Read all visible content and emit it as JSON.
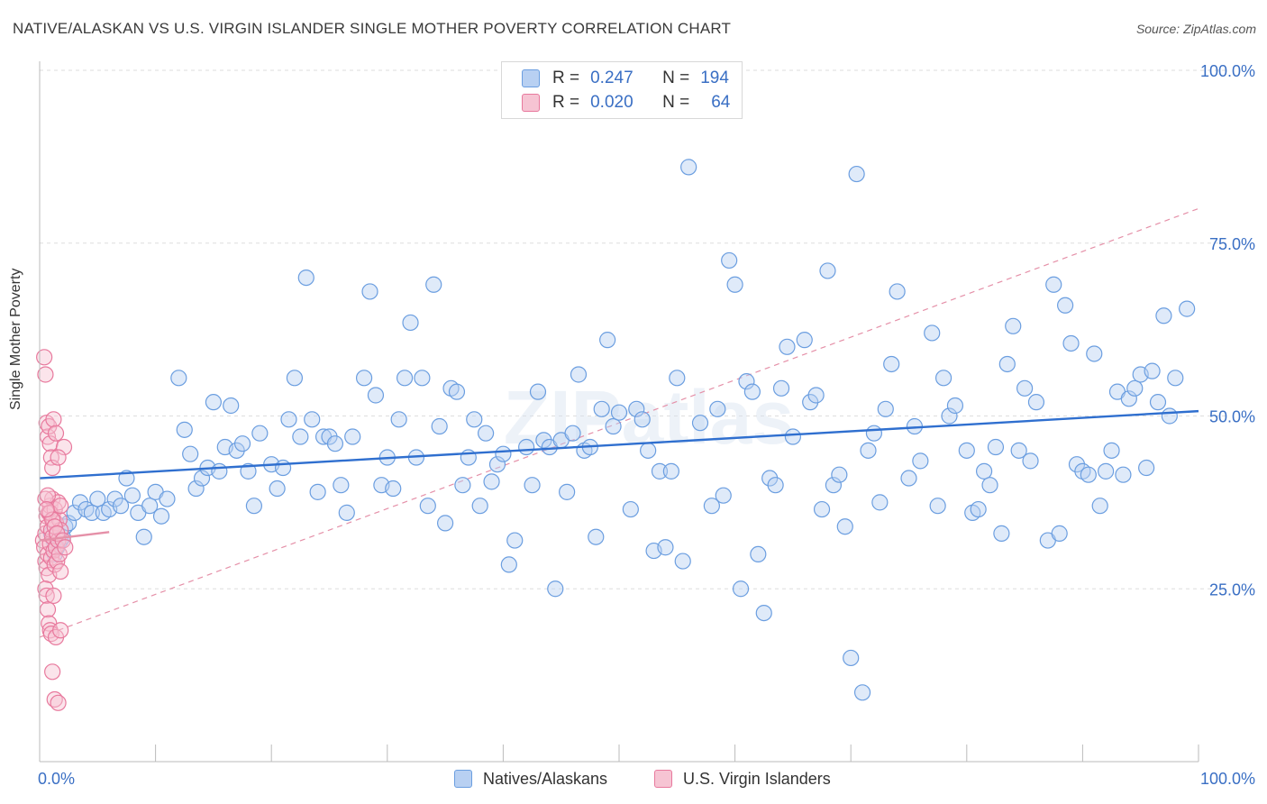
{
  "title": "NATIVE/ALASKAN VS U.S. VIRGIN ISLANDER SINGLE MOTHER POVERTY CORRELATION CHART",
  "source": "Source: ZipAtlas.com",
  "watermark": "ZIPatlas",
  "legend": {
    "rows": [
      {
        "r_label": "R =",
        "r_value": "0.247",
        "n_label": "N =",
        "n_value": "194"
      },
      {
        "r_label": "R =",
        "r_value": "0.020",
        "n_label": "N =",
        "n_value": "64"
      }
    ]
  },
  "colors": {
    "blue_fill": "#b8d0f2",
    "blue_stroke": "#6b9ee0",
    "blue_line": "#2f6fcf",
    "pink_fill": "#f6c4d3",
    "pink_stroke": "#e8799d",
    "pink_line": "#e590a8",
    "axis_label": "#3a6fc4",
    "grid": "#dddddd"
  },
  "chart_data": {
    "type": "scatter",
    "ylabel": "Single Mother Poverty",
    "xlim": [
      0,
      100
    ],
    "ylim": [
      0,
      100
    ],
    "x_tick_labels": [
      "0.0%",
      "100.0%"
    ],
    "y_tick_labels": [
      "25.0%",
      "50.0%",
      "75.0%",
      "100.0%"
    ],
    "y_ticks": [
      25,
      50,
      75,
      100
    ],
    "grid": true,
    "legend_position": "top-center",
    "series": [
      {
        "name": "Natives/Alaskans",
        "trend": {
          "x": [
            0,
            100
          ],
          "y": [
            41.0,
            50.7
          ]
        },
        "points": [
          [
            1,
            33
          ],
          [
            1.2,
            32
          ],
          [
            1.3,
            30
          ],
          [
            1.5,
            31
          ],
          [
            1.8,
            32
          ],
          [
            2,
            32.5
          ],
          [
            2.2,
            34
          ],
          [
            2.5,
            34.5
          ],
          [
            3,
            36
          ],
          [
            3.5,
            37.5
          ],
          [
            4,
            36.5
          ],
          [
            4.5,
            36
          ],
          [
            5,
            38
          ],
          [
            5.5,
            36
          ],
          [
            6,
            36.5
          ],
          [
            6.5,
            38
          ],
          [
            7,
            37
          ],
          [
            7.5,
            41
          ],
          [
            8,
            38.5
          ],
          [
            8.5,
            36
          ],
          [
            9,
            32.5
          ],
          [
            9.5,
            37
          ],
          [
            10,
            39
          ],
          [
            10.5,
            35.5
          ],
          [
            11,
            38
          ],
          [
            12,
            55.5
          ],
          [
            12.5,
            48
          ],
          [
            13,
            44.5
          ],
          [
            13.5,
            39.5
          ],
          [
            14,
            41
          ],
          [
            14.5,
            42.5
          ],
          [
            15,
            52
          ],
          [
            15.5,
            42
          ],
          [
            16,
            45.5
          ],
          [
            16.5,
            51.5
          ],
          [
            17,
            45
          ],
          [
            17.5,
            46
          ],
          [
            18,
            42
          ],
          [
            18.5,
            37
          ],
          [
            19,
            47.5
          ],
          [
            20,
            43
          ],
          [
            20.5,
            39.5
          ],
          [
            21,
            42.5
          ],
          [
            21.5,
            49.5
          ],
          [
            22,
            55.5
          ],
          [
            22.5,
            47
          ],
          [
            23,
            70
          ],
          [
            23.5,
            49.5
          ],
          [
            24,
            39
          ],
          [
            24.5,
            47
          ],
          [
            25,
            47
          ],
          [
            25.5,
            46
          ],
          [
            26,
            40
          ],
          [
            26.5,
            36
          ],
          [
            27,
            47
          ],
          [
            28,
            55.5
          ],
          [
            28.5,
            68
          ],
          [
            29,
            53
          ],
          [
            29.5,
            40
          ],
          [
            30,
            44
          ],
          [
            30.5,
            39.5
          ],
          [
            31,
            49.5
          ],
          [
            31.5,
            55.5
          ],
          [
            32,
            63.5
          ],
          [
            32.5,
            44
          ],
          [
            33,
            55.5
          ],
          [
            33.5,
            37
          ],
          [
            34,
            69
          ],
          [
            34.5,
            48.5
          ],
          [
            35,
            34.5
          ],
          [
            35.5,
            54
          ],
          [
            36,
            53.5
          ],
          [
            36.5,
            40
          ],
          [
            37,
            44
          ],
          [
            37.5,
            49.5
          ],
          [
            38,
            37
          ],
          [
            38.5,
            47.5
          ],
          [
            39,
            40.5
          ],
          [
            39.5,
            43
          ],
          [
            40,
            44.5
          ],
          [
            40.5,
            28.5
          ],
          [
            41,
            32
          ],
          [
            42,
            45.5
          ],
          [
            42.5,
            40
          ],
          [
            43,
            53.5
          ],
          [
            43.5,
            46.5
          ],
          [
            44,
            45.5
          ],
          [
            44.5,
            25
          ],
          [
            45,
            46.5
          ],
          [
            45.5,
            39
          ],
          [
            46,
            47.5
          ],
          [
            46.5,
            56
          ],
          [
            47,
            45
          ],
          [
            47.5,
            45.5
          ],
          [
            48,
            32.5
          ],
          [
            48.5,
            51
          ],
          [
            49,
            61
          ],
          [
            49.5,
            48.5
          ],
          [
            50,
            50.5
          ],
          [
            51,
            36.5
          ],
          [
            51.5,
            51
          ],
          [
            52,
            49.5
          ],
          [
            52.5,
            45
          ],
          [
            53,
            30.5
          ],
          [
            53.5,
            42
          ],
          [
            54,
            31
          ],
          [
            54.5,
            42
          ],
          [
            55,
            55.5
          ],
          [
            55.5,
            29
          ],
          [
            56,
            86
          ],
          [
            57,
            49
          ],
          [
            58,
            37
          ],
          [
            58.5,
            51
          ],
          [
            59,
            38.5
          ],
          [
            59.5,
            72.5
          ],
          [
            60,
            69
          ],
          [
            60.5,
            25
          ],
          [
            61,
            55
          ],
          [
            61.5,
            53.5
          ],
          [
            62,
            30
          ],
          [
            62.5,
            21.5
          ],
          [
            63,
            41
          ],
          [
            63.5,
            40
          ],
          [
            64,
            54
          ],
          [
            64.5,
            60
          ],
          [
            65,
            47
          ],
          [
            66,
            61
          ],
          [
            66.5,
            52
          ],
          [
            67,
            53
          ],
          [
            67.5,
            36.5
          ],
          [
            68,
            71
          ],
          [
            68.5,
            40
          ],
          [
            69,
            41.5
          ],
          [
            69.5,
            34
          ],
          [
            70,
            15
          ],
          [
            70.5,
            85
          ],
          [
            71,
            10
          ],
          [
            71.5,
            45
          ],
          [
            72,
            47.5
          ],
          [
            72.5,
            37.5
          ],
          [
            73,
            51
          ],
          [
            73.5,
            57.5
          ],
          [
            74,
            68
          ],
          [
            75,
            41
          ],
          [
            75.5,
            48.5
          ],
          [
            76,
            43.5
          ],
          [
            77,
            62
          ],
          [
            77.5,
            37
          ],
          [
            78,
            55.5
          ],
          [
            78.5,
            50
          ],
          [
            79,
            51.5
          ],
          [
            80,
            45
          ],
          [
            80.5,
            36
          ],
          [
            81,
            36.5
          ],
          [
            81.5,
            42
          ],
          [
            82,
            40
          ],
          [
            82.5,
            45.5
          ],
          [
            83,
            33
          ],
          [
            83.5,
            57.5
          ],
          [
            84,
            63
          ],
          [
            84.5,
            45
          ],
          [
            85,
            54
          ],
          [
            85.5,
            43.5
          ],
          [
            86,
            52
          ],
          [
            87,
            32
          ],
          [
            87.5,
            69
          ],
          [
            88,
            33
          ],
          [
            88.5,
            66
          ],
          [
            89,
            60.5
          ],
          [
            89.5,
            43
          ],
          [
            90,
            42
          ],
          [
            90.5,
            41.5
          ],
          [
            91,
            59
          ],
          [
            91.5,
            37
          ],
          [
            92,
            42
          ],
          [
            92.5,
            45
          ],
          [
            93,
            53.5
          ],
          [
            93.5,
            41.5
          ],
          [
            94,
            52.5
          ],
          [
            94.5,
            54
          ],
          [
            95,
            56
          ],
          [
            95.5,
            42.5
          ],
          [
            96,
            56.5
          ],
          [
            96.5,
            52
          ],
          [
            97,
            64.5
          ],
          [
            97.5,
            50
          ],
          [
            98,
            55.5
          ],
          [
            99,
            65.5
          ]
        ]
      },
      {
        "name": "U.S. Virgin Islanders",
        "trend": {
          "x": [
            0,
            6
          ],
          "y": [
            32.0,
            33.2
          ]
        },
        "trend_extended": {
          "x": [
            0,
            100
          ],
          "y": [
            18.0,
            80.0
          ]
        },
        "points": [
          [
            0.3,
            32
          ],
          [
            0.4,
            31
          ],
          [
            0.5,
            33
          ],
          [
            0.5,
            29
          ],
          [
            0.6,
            35.5
          ],
          [
            0.6,
            28
          ],
          [
            0.7,
            34
          ],
          [
            0.7,
            30
          ],
          [
            0.8,
            36
          ],
          [
            0.8,
            27
          ],
          [
            0.9,
            37
          ],
          [
            0.9,
            31.5
          ],
          [
            1,
            33.5
          ],
          [
            1,
            29.5
          ],
          [
            1.1,
            38
          ],
          [
            1.1,
            32.5
          ],
          [
            1.2,
            35
          ],
          [
            1.2,
            30.5
          ],
          [
            1.3,
            36.5
          ],
          [
            1.3,
            28.5
          ],
          [
            1.4,
            34.5
          ],
          [
            1.4,
            31
          ],
          [
            1.5,
            33
          ],
          [
            1.5,
            29
          ],
          [
            1.6,
            37.5
          ],
          [
            1.6,
            32
          ],
          [
            1.7,
            35
          ],
          [
            1.7,
            30
          ],
          [
            1.8,
            33.5
          ],
          [
            1.8,
            27.5
          ],
          [
            0.4,
            58.5
          ],
          [
            0.5,
            56
          ],
          [
            0.6,
            49
          ],
          [
            0.7,
            47
          ],
          [
            0.8,
            48.5
          ],
          [
            0.9,
            46
          ],
          [
            1,
            44
          ],
          [
            1.1,
            42.5
          ],
          [
            1.2,
            49.5
          ],
          [
            1.4,
            47.5
          ],
          [
            2.1,
            45.5
          ],
          [
            1.6,
            44
          ],
          [
            0.5,
            25
          ],
          [
            0.6,
            24
          ],
          [
            0.7,
            22
          ],
          [
            0.8,
            20
          ],
          [
            0.9,
            19
          ],
          [
            1,
            18.5
          ],
          [
            1.2,
            24
          ],
          [
            1.4,
            18
          ],
          [
            1.1,
            13
          ],
          [
            1.3,
            9
          ],
          [
            1.6,
            8.5
          ],
          [
            1.8,
            19
          ],
          [
            0.5,
            38
          ],
          [
            0.7,
            38.5
          ],
          [
            0.9,
            36
          ],
          [
            1.1,
            35
          ],
          [
            1.3,
            34
          ],
          [
            1.5,
            33
          ],
          [
            2,
            32
          ],
          [
            2.2,
            31
          ],
          [
            1.8,
            37
          ],
          [
            0.6,
            36.5
          ]
        ]
      }
    ]
  }
}
